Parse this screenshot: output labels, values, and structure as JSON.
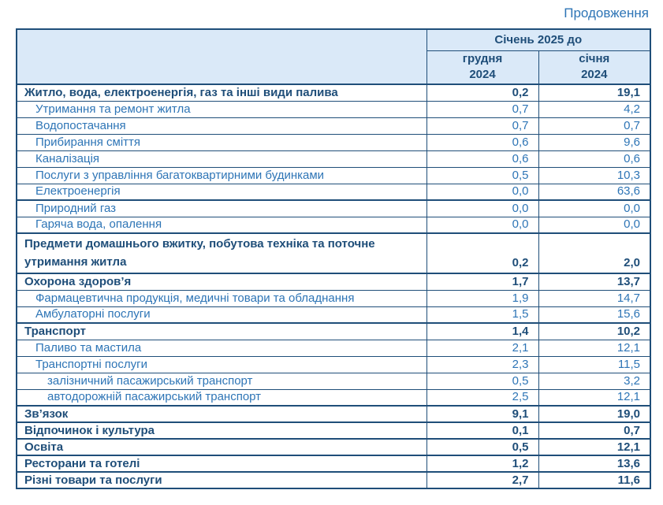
{
  "page": {
    "continuation_label": "Продовження"
  },
  "table": {
    "header": {
      "span_label": "Січень 2025 до",
      "to_december": "грудня\n2024",
      "to_january": "січня\n2024"
    },
    "rows": [
      {
        "label": "Житло, вода, електроенергія, газ та інші види палива",
        "to_dec": "0,2",
        "to_jan": "19,1",
        "level": 0,
        "bold": true,
        "thick_top": true,
        "two_line": false
      },
      {
        "label": "Утримання та ремонт житла",
        "to_dec": "0,7",
        "to_jan": "4,2",
        "level": 1,
        "bold": false,
        "thick_top": false,
        "two_line": false
      },
      {
        "label": "Водопостачання",
        "to_dec": "0,7",
        "to_jan": "0,7",
        "level": 1,
        "bold": false,
        "thick_top": false,
        "two_line": false
      },
      {
        "label": "Прибирання сміття",
        "to_dec": "0,6",
        "to_jan": "9,6",
        "level": 1,
        "bold": false,
        "thick_top": false,
        "two_line": false
      },
      {
        "label": "Каналізація",
        "to_dec": "0,6",
        "to_jan": "0,6",
        "level": 1,
        "bold": false,
        "thick_top": false,
        "two_line": false
      },
      {
        "label": "Послуги з управління багатоквартирними будинками",
        "to_dec": "0,5",
        "to_jan": "10,3",
        "level": 1,
        "bold": false,
        "thick_top": false,
        "two_line": false
      },
      {
        "label": "Електроенергія",
        "to_dec": "0,0",
        "to_jan": "63,6",
        "level": 1,
        "bold": false,
        "thick_top": false,
        "two_line": false
      },
      {
        "label": "Природний газ",
        "to_dec": "0,0",
        "to_jan": "0,0",
        "level": 1,
        "bold": false,
        "thick_top": true,
        "two_line": false
      },
      {
        "label": "Гаряча вода, опалення",
        "to_dec": "0,0",
        "to_jan": "0,0",
        "level": 1,
        "bold": false,
        "thick_top": false,
        "two_line": false
      },
      {
        "label": "Предмети домашнього вжитку, побутова техніка та поточне\nутримання житла",
        "to_dec": "0,2",
        "to_jan": "2,0",
        "level": 0,
        "bold": true,
        "thick_top": true,
        "two_line": true
      },
      {
        "label": "Охорона здоров’я",
        "to_dec": "1,7",
        "to_jan": "13,7",
        "level": 0,
        "bold": true,
        "thick_top": true,
        "two_line": false
      },
      {
        "label": "Фармацевтична продукція, медичні товари та обладнання",
        "to_dec": "1,9",
        "to_jan": "14,7",
        "level": 1,
        "bold": false,
        "thick_top": false,
        "two_line": false
      },
      {
        "label": "Амбулаторні послуги",
        "to_dec": "1,5",
        "to_jan": "15,6",
        "level": 1,
        "bold": false,
        "thick_top": false,
        "two_line": false
      },
      {
        "label": "Транспорт",
        "to_dec": "1,4",
        "to_jan": "10,2",
        "level": 0,
        "bold": true,
        "thick_top": true,
        "two_line": false
      },
      {
        "label": "Паливо та мастила",
        "to_dec": "2,1",
        "to_jan": "12,1",
        "level": 1,
        "bold": false,
        "thick_top": false,
        "two_line": false
      },
      {
        "label": "Транспортні послуги",
        "to_dec": "2,3",
        "to_jan": "11,5",
        "level": 1,
        "bold": false,
        "thick_top": false,
        "two_line": false
      },
      {
        "label": "залізничний пасажирський транспорт",
        "to_dec": "0,5",
        "to_jan": "3,2",
        "level": 2,
        "bold": false,
        "thick_top": false,
        "two_line": false
      },
      {
        "label": "автодорожній пасажирський транспорт",
        "to_dec": "2,5",
        "to_jan": "12,1",
        "level": 2,
        "bold": false,
        "thick_top": false,
        "two_line": false
      },
      {
        "label": "Зв’язок",
        "to_dec": "9,1",
        "to_jan": "19,0",
        "level": 0,
        "bold": true,
        "thick_top": true,
        "two_line": false
      },
      {
        "label": "Відпочинок і культура",
        "to_dec": "0,1",
        "to_jan": "0,7",
        "level": 0,
        "bold": true,
        "thick_top": true,
        "two_line": false
      },
      {
        "label": "Освіта",
        "to_dec": "0,5",
        "to_jan": "12,1",
        "level": 0,
        "bold": true,
        "thick_top": true,
        "two_line": false
      },
      {
        "label": "Ресторани та готелі",
        "to_dec": "1,2",
        "to_jan": "13,6",
        "level": 0,
        "bold": true,
        "thick_top": true,
        "two_line": false
      },
      {
        "label": "Різні товари та послуги",
        "to_dec": "2,7",
        "to_jan": "11,6",
        "level": 0,
        "bold": true,
        "thick_top": true,
        "two_line": false
      }
    ]
  },
  "colors": {
    "dark_navy_text": "#1F4E79",
    "medium_blue_text": "#2E75B6",
    "header_background": "#DAE9F8",
    "border": "#1F4E79"
  }
}
